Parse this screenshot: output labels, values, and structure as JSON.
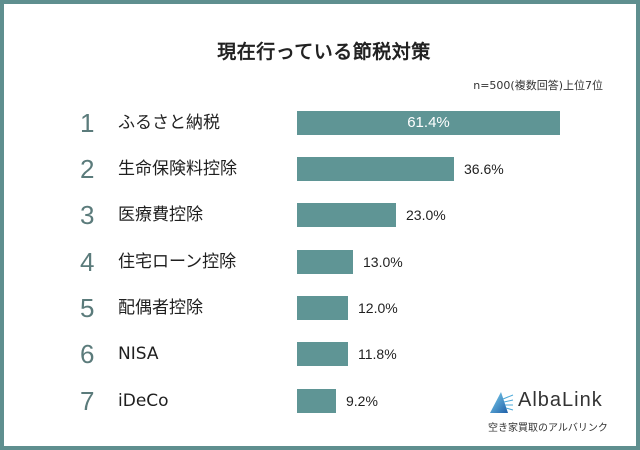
{
  "title": "現在行っている節税対策",
  "note": "n=500(複数回答)上位7位",
  "colors": {
    "bar": "#5f9595",
    "frame": "#5f8f8f",
    "rank": "#5b7b7b"
  },
  "items": [
    {
      "rank": "1",
      "label": "ふるさと納税",
      "value": 61.4,
      "value_label": "61.4%"
    },
    {
      "rank": "2",
      "label": "生命保険料控除",
      "value": 36.6,
      "value_label": "36.6%"
    },
    {
      "rank": "3",
      "label": "医療費控除",
      "value": 23.0,
      "value_label": "23.0%"
    },
    {
      "rank": "4",
      "label": "住宅ローン控除",
      "value": 13.0,
      "value_label": "13.0%"
    },
    {
      "rank": "5",
      "label": "配偶者控除",
      "value": 12.0,
      "value_label": "12.0%"
    },
    {
      "rank": "6",
      "label": "NISA",
      "value": 11.8,
      "value_label": "11.8%"
    },
    {
      "rank": "7",
      "label": "iDeCo",
      "value": 9.2,
      "value_label": "9.2%"
    }
  ],
  "logo": {
    "name": "AlbaLink",
    "tagline": "空き家買取のアルバリンク"
  },
  "chart_data": {
    "type": "bar",
    "orientation": "horizontal",
    "title": "現在行っている節税対策",
    "subtitle": "n=500(複数回答)上位7位",
    "categories": [
      "ふるさと納税",
      "生命保険料控除",
      "医療費控除",
      "住宅ローン控除",
      "配偶者控除",
      "NISA",
      "iDeCo"
    ],
    "values": [
      61.4,
      36.6,
      23.0,
      13.0,
      12.0,
      11.8,
      9.2
    ],
    "unit": "%",
    "xlabel": "",
    "ylabel": "",
    "grid": false,
    "legend": null,
    "data_labels": true
  }
}
